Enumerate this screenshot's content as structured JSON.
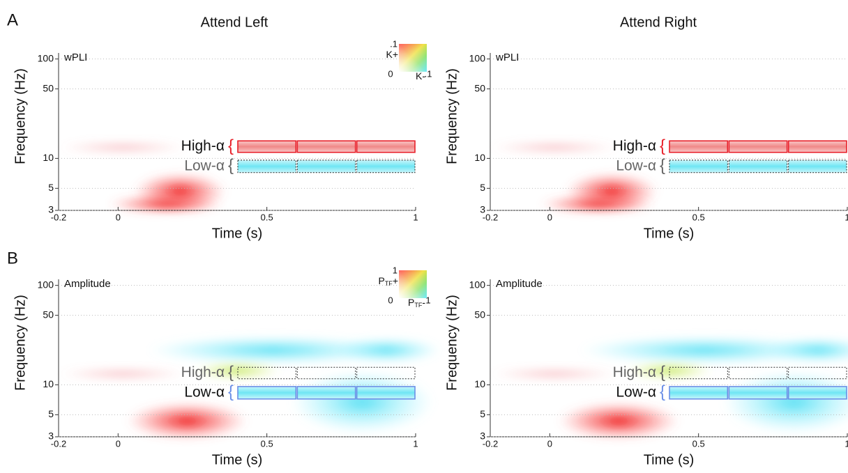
{
  "panel_labels": [
    "A",
    "B"
  ],
  "column_titles": [
    "Attend Left",
    "Attend Right"
  ],
  "x_label": "Time (s)",
  "y_label": "Frequency (Hz)",
  "xlim": [
    -0.2,
    1
  ],
  "xticks": [
    -0.2,
    0,
    0.5,
    1
  ],
  "ylim": [
    3,
    115
  ],
  "yticks": [
    3,
    5,
    10,
    50,
    100
  ],
  "y_scale": "log",
  "windows": [
    [
      0.4,
      0.6
    ],
    [
      0.6,
      0.8
    ],
    [
      0.8,
      1
    ]
  ],
  "rows": [
    {
      "label": "wPLI",
      "bands": [
        {
          "name": "High-α",
          "range": [
            11.5,
            15
          ],
          "text_color": "#111111",
          "brace_color": "#e8202a",
          "stroke": "#e8202a",
          "dash": false,
          "fill": "red"
        },
        {
          "name": "Low-α",
          "range": [
            7.2,
            9.6
          ],
          "text_color": "#666666",
          "brace_color": "#666666",
          "stroke": "#222222",
          "dash": true,
          "fill": "cyan"
        }
      ],
      "legend": {
        "top": ".1",
        "pos": "K+",
        "zero": "0",
        "neg": "K-",
        "right": ".1"
      }
    },
    {
      "label": "Amplitude",
      "bands": [
        {
          "name": "High-α",
          "range": [
            11.5,
            15
          ],
          "text_color": "#666666",
          "brace_color": "#666666",
          "stroke": "#333333",
          "dash": true,
          "fill": "none"
        },
        {
          "name": "Low-α",
          "range": [
            7.2,
            9.6
          ],
          "text_color": "#111111",
          "brace_color": "#6b8fe6",
          "stroke": "#6b8fe6",
          "dash": false,
          "fill": "cyan"
        }
      ],
      "legend": {
        "top": "1",
        "pos": "P",
        "pos_sub": "TF",
        "pos_sign": "+",
        "zero": "0",
        "neg": "P",
        "neg_sub": "TF",
        "neg_sign": "-",
        "right": "1"
      }
    }
  ]
}
